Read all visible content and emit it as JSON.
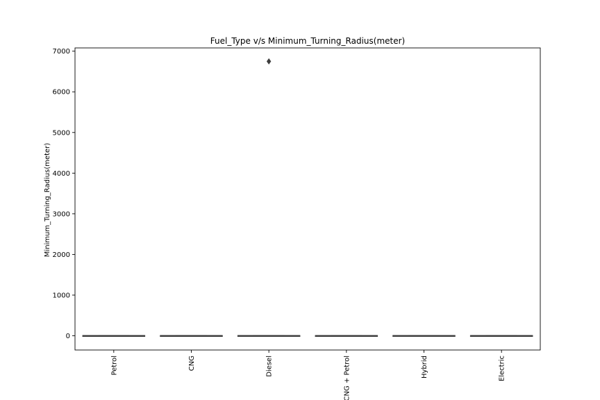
{
  "chart_data": {
    "type": "box",
    "title": "Fuel_Type v/s Minimum_Turning_Radius(meter)",
    "xlabel": "",
    "ylabel": "Minimum_Turning_Radius(meter)",
    "ylim": [
      -350,
      7080
    ],
    "yticks": [
      0,
      1000,
      2000,
      3000,
      4000,
      5000,
      6000,
      7000
    ],
    "categories": [
      "Petrol",
      "CNG",
      "Diesel",
      "CNG + Petrol",
      "Hybrid",
      "Electric"
    ],
    "boxes": [
      {
        "category": "Petrol",
        "min": 4.5,
        "q1": 5.0,
        "median": 5.1,
        "q3": 5.3,
        "max": 5.8,
        "outliers": []
      },
      {
        "category": "CNG",
        "min": 4.5,
        "q1": 4.9,
        "median": 5.0,
        "q3": 5.2,
        "max": 5.5,
        "outliers": []
      },
      {
        "category": "Diesel",
        "min": 4.7,
        "q1": 5.2,
        "median": 5.4,
        "q3": 5.6,
        "max": 6.2,
        "outliers": [
          6750
        ]
      },
      {
        "category": "CNG + Petrol",
        "min": 4.6,
        "q1": 4.9,
        "median": 5.0,
        "q3": 5.2,
        "max": 5.4,
        "outliers": []
      },
      {
        "category": "Hybrid",
        "min": 5.0,
        "q1": 5.3,
        "median": 5.5,
        "q3": 5.7,
        "max": 5.9,
        "outliers": []
      },
      {
        "category": "Electric",
        "min": 4.5,
        "q1": 4.9,
        "median": 5.1,
        "q3": 5.3,
        "max": 5.6,
        "outliers": []
      }
    ],
    "grid": false,
    "colors": {
      "box_edge": "#3d3d3d",
      "outlier": "#3d3d3d",
      "axes": "#000000"
    }
  }
}
